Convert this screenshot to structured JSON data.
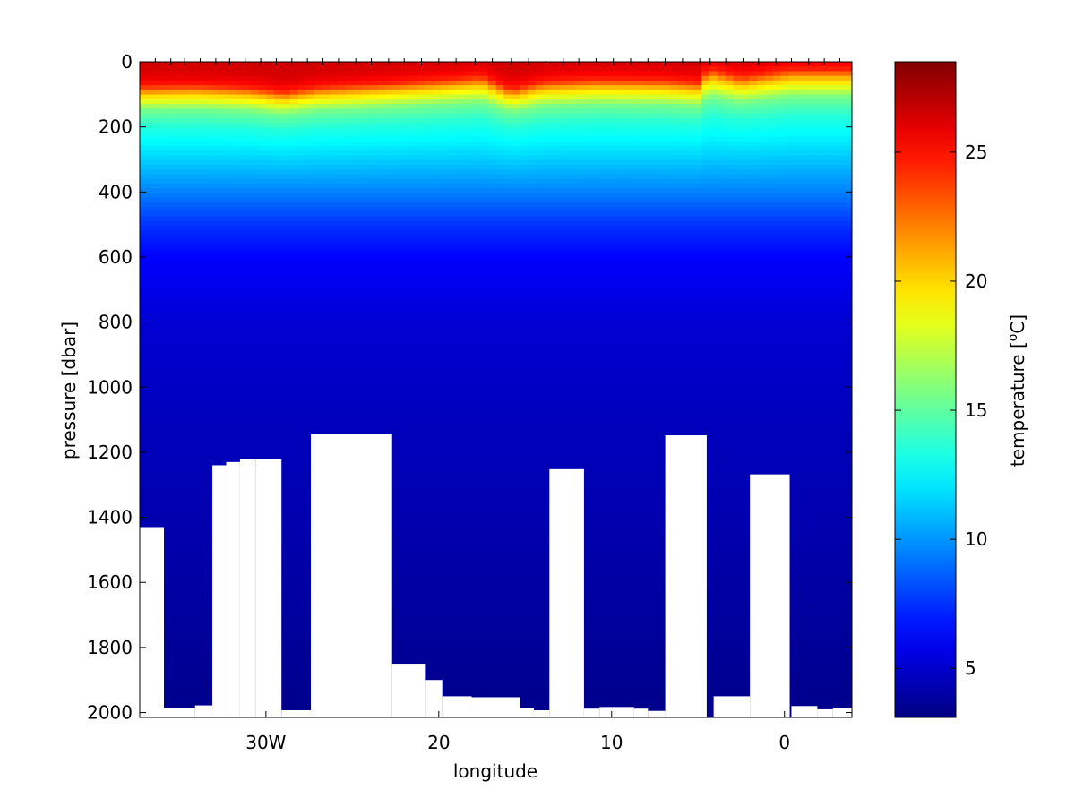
{
  "chart_data": {
    "type": "heatmap",
    "x_label": "longitude",
    "y_label": "pressure [dbar]",
    "colorbar_label": "temperature",
    "colorbar_unit_base": "[",
    "colorbar_unit_sup": "o",
    "colorbar_unit_end": "C]",
    "x_range": [
      -37.3,
      3.9
    ],
    "y_range": [
      0,
      2015
    ],
    "y_reversed": true,
    "x_ticks": [
      {
        "value": -30,
        "label": "30W"
      },
      {
        "value": -20,
        "label": "20"
      },
      {
        "value": -10,
        "label": "10"
      },
      {
        "value": 0,
        "label": "0"
      }
    ],
    "y_ticks": [
      {
        "value": 0,
        "label": "0"
      },
      {
        "value": 200,
        "label": "200"
      },
      {
        "value": 400,
        "label": "400"
      },
      {
        "value": 600,
        "label": "600"
      },
      {
        "value": 800,
        "label": "800"
      },
      {
        "value": 1000,
        "label": "1000"
      },
      {
        "value": 1200,
        "label": "1200"
      },
      {
        "value": 1400,
        "label": "1400"
      },
      {
        "value": 1600,
        "label": "1600"
      },
      {
        "value": 1800,
        "label": "1800"
      },
      {
        "value": 2000,
        "label": "2000"
      }
    ],
    "colorbar_range": [
      3.1,
      28.5
    ],
    "colorbar_ticks": [
      {
        "value": 5,
        "label": "5"
      },
      {
        "value": 10,
        "label": "10"
      },
      {
        "value": 15,
        "label": "15"
      },
      {
        "value": 20,
        "label": "20"
      },
      {
        "value": 25,
        "label": "25"
      }
    ],
    "colormap": "jet",
    "station_longitudes": [
      -36.4,
      -35.5,
      -34.7,
      -33.8,
      -32.9,
      -32.1,
      -31.2,
      -30.3,
      -29.4,
      -28.5,
      -27.6,
      -26.7,
      -25.8,
      -24.8,
      -23.9,
      -22.9,
      -22.0,
      -21.0,
      -20.0,
      -19.0,
      -17.9,
      -16.9,
      -15.8,
      -14.8,
      -13.8,
      -12.8,
      -11.9,
      -10.9,
      -9.9,
      -8.9,
      -7.9,
      -6.9,
      -5.9,
      -4.9,
      -4.3,
      -3.4,
      -2.4,
      -1.5,
      -0.5,
      0.4,
      1.4,
      2.3,
      3.2
    ],
    "temperature_profile": {
      "pressure": [
        0,
        25,
        50,
        75,
        100,
        150,
        200,
        300,
        400,
        500,
        600,
        800,
        1000,
        1200,
        1400,
        1600,
        1800,
        2000
      ],
      "temperature": [
        26.5,
        26.3,
        25.8,
        24.5,
        20.5,
        15.5,
        13.5,
        11.5,
        9.5,
        7.5,
        6.3,
        5.2,
        4.8,
        4.5,
        4.3,
        4.0,
        3.7,
        3.4
      ]
    },
    "mixed_layer_depth": [
      {
        "lon": -37.3,
        "depth": 95
      },
      {
        "lon": -34.0,
        "depth": 92
      },
      {
        "lon": -31.0,
        "depth": 100
      },
      {
        "lon": -29.0,
        "depth": 118
      },
      {
        "lon": -27.0,
        "depth": 98
      },
      {
        "lon": -24.0,
        "depth": 88
      },
      {
        "lon": -20.0,
        "depth": 72
      },
      {
        "lon": -17.5,
        "depth": 60
      },
      {
        "lon": -15.8,
        "depth": 105
      },
      {
        "lon": -14.0,
        "depth": 78
      },
      {
        "lon": -11.0,
        "depth": 70
      },
      {
        "lon": -7.0,
        "depth": 72
      },
      {
        "lon": -5.0,
        "depth": 80
      },
      {
        "lon": -4.4,
        "depth": 38
      },
      {
        "lon": -2.5,
        "depth": 62
      },
      {
        "lon": 0.3,
        "depth": 40
      },
      {
        "lon": 3.9,
        "depth": 40
      }
    ],
    "masked_bottom": [
      {
        "lon_start": -37.3,
        "lon_end": -35.9,
        "top": 1430
      },
      {
        "lon_start": -35.9,
        "lon_end": -34.1,
        "top": 1985
      },
      {
        "lon_start": -34.1,
        "lon_end": -33.1,
        "top": 1978
      },
      {
        "lon_start": -33.1,
        "lon_end": -32.3,
        "top": 1240
      },
      {
        "lon_start": -32.3,
        "lon_end": -31.5,
        "top": 1230
      },
      {
        "lon_start": -31.5,
        "lon_end": -30.6,
        "top": 1222
      },
      {
        "lon_start": -30.6,
        "lon_end": -29.1,
        "top": 1220
      },
      {
        "lon_start": -29.1,
        "lon_end": -27.4,
        "top": 1993
      },
      {
        "lon_start": -27.4,
        "lon_end": -22.7,
        "top": 1145
      },
      {
        "lon_start": -22.7,
        "lon_end": -20.8,
        "top": 1850
      },
      {
        "lon_start": -20.8,
        "lon_end": -19.8,
        "top": 1900
      },
      {
        "lon_start": -19.8,
        "lon_end": -18.1,
        "top": 1950
      },
      {
        "lon_start": -18.1,
        "lon_end": -15.3,
        "top": 1953
      },
      {
        "lon_start": -15.3,
        "lon_end": -14.5,
        "top": 1987
      },
      {
        "lon_start": -14.5,
        "lon_end": -13.6,
        "top": 1993
      },
      {
        "lon_start": -13.6,
        "lon_end": -11.6,
        "top": 1252
      },
      {
        "lon_start": -11.6,
        "lon_end": -10.7,
        "top": 1988
      },
      {
        "lon_start": -10.7,
        "lon_end": -8.7,
        "top": 1983
      },
      {
        "lon_start": -8.7,
        "lon_end": -7.9,
        "top": 1988
      },
      {
        "lon_start": -7.9,
        "lon_end": -6.9,
        "top": 1995
      },
      {
        "lon_start": -6.9,
        "lon_end": -4.5,
        "top": 1148
      },
      {
        "lon_start": -4.1,
        "lon_end": -2.0,
        "top": 1950
      },
      {
        "lon_start": -2.0,
        "lon_end": 0.3,
        "top": 1268
      },
      {
        "lon_start": 0.4,
        "lon_end": 1.9,
        "top": 1980
      },
      {
        "lon_start": 1.9,
        "lon_end": 2.8,
        "top": 1990
      },
      {
        "lon_start": 2.8,
        "lon_end": 3.9,
        "top": 1985
      }
    ]
  }
}
